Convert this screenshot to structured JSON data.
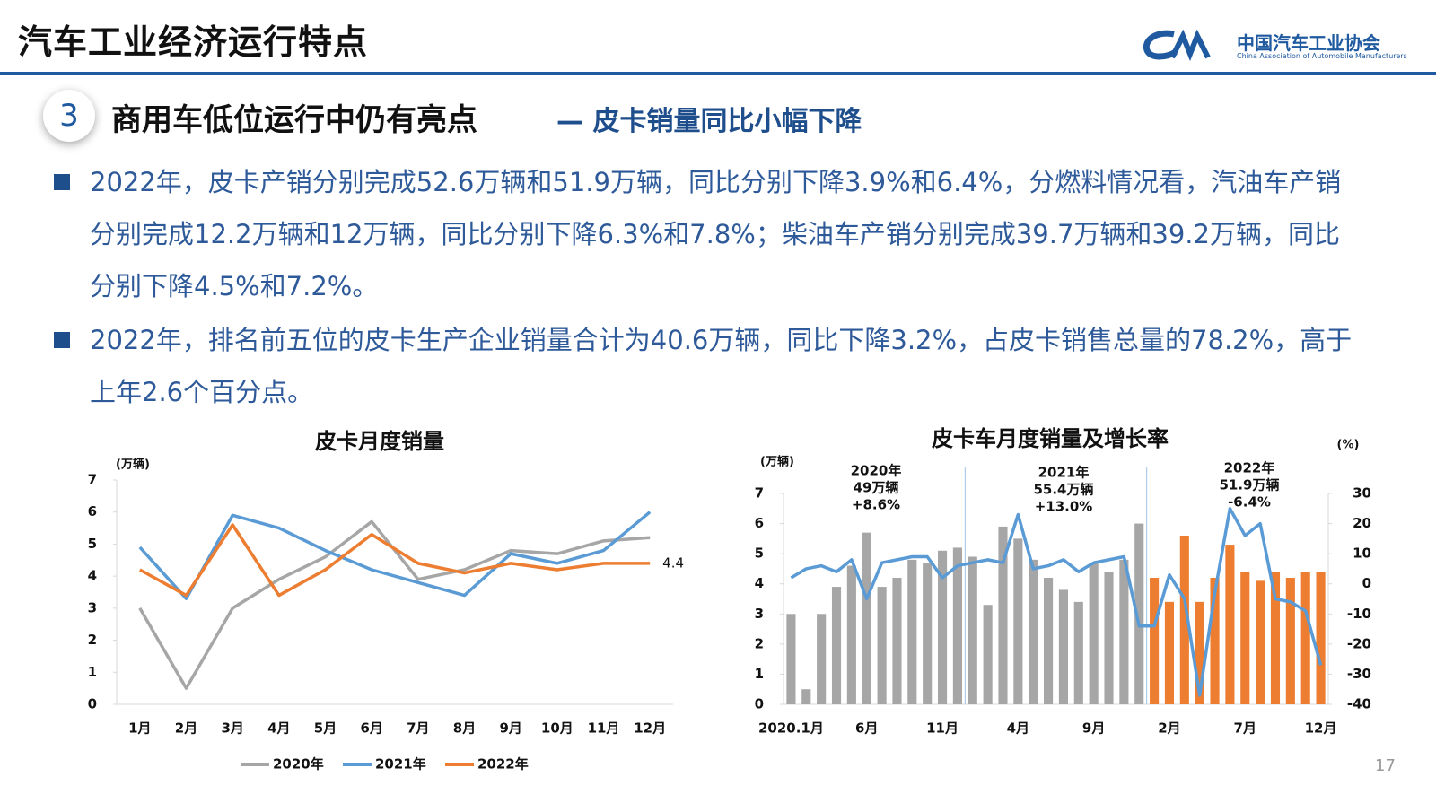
{
  "header": {
    "title": "汽车工业经济运行特点",
    "logo_cn": "中国汽车工业协会",
    "logo_en": "China Association of Automobile Manufacturers"
  },
  "section": {
    "number": "3",
    "heading": "商用车低位运行中仍有亮点",
    "subheading": "— 皮卡销量同比小幅下降"
  },
  "bullets": [
    "2022年，皮卡产销分别完成52.6万辆和51.9万辆，同比分别下降3.9%和6.4%，分燃料情况看，汽油车产销分别完成12.2万辆和12万辆，同比分别下降6.3%和7.8%；柴油车产销分别完成39.7万辆和39.2万辆，同比分别下降4.5%和7.2%。",
    "2022年，排名前五位的皮卡生产企业销量合计为40.6万辆，同比下降3.2%，占皮卡销售总量的78.2%，高于上年2.6个百分点。"
  ],
  "page_number": "17",
  "chart_data": [
    {
      "type": "line",
      "title": "皮卡月度销量",
      "y_unit": "(万辆)",
      "categories": [
        "1月",
        "2月",
        "3月",
        "4月",
        "5月",
        "6月",
        "7月",
        "8月",
        "9月",
        "10月",
        "11月",
        "12月"
      ],
      "ylim": [
        0,
        7
      ],
      "yticks": [
        0,
        1,
        2,
        3,
        4,
        5,
        6,
        7
      ],
      "legend": "bottom",
      "series": [
        {
          "name": "2020年",
          "color": "#a6a6a6",
          "values": [
            3.0,
            0.5,
            3.0,
            3.9,
            4.6,
            5.7,
            3.9,
            4.2,
            4.8,
            4.7,
            5.1,
            5.2
          ]
        },
        {
          "name": "2021年",
          "color": "#5b9bd5",
          "values": [
            4.9,
            3.3,
            5.9,
            5.5,
            4.8,
            4.2,
            3.8,
            3.4,
            4.7,
            4.4,
            4.8,
            6.0
          ]
        },
        {
          "name": "2022年",
          "color": "#ed7d31",
          "values": [
            4.2,
            3.4,
            5.6,
            3.4,
            4.2,
            5.3,
            4.4,
            4.1,
            4.4,
            4.2,
            4.4,
            4.4
          ]
        }
      ],
      "annotations": [
        "4.4"
      ]
    },
    {
      "type": "combo",
      "title": "皮卡车月度销量及增长率",
      "y_unit": "(万辆)",
      "y2_unit": "(%)",
      "categories": [
        "2020.1月",
        null,
        null,
        null,
        null,
        "6月",
        null,
        null,
        null,
        null,
        "11月",
        null,
        null,
        null,
        null,
        "4月",
        null,
        null,
        null,
        null,
        "9月",
        null,
        null,
        null,
        null,
        "2月",
        null,
        null,
        null,
        null,
        "7月",
        null,
        null,
        null,
        null,
        "12月"
      ],
      "ylim": [
        0,
        7
      ],
      "yticks": [
        0,
        1,
        2,
        3,
        4,
        5,
        6,
        7
      ],
      "y2lim": [
        -40,
        30
      ],
      "y2ticks": [
        -40,
        -30,
        -20,
        -10,
        0,
        10,
        20,
        30
      ],
      "series": [
        {
          "kind": "bar",
          "color": "#a6a6a6",
          "values": [
            3.0,
            0.5,
            3.0,
            3.9,
            4.6,
            5.7,
            3.9,
            4.2,
            4.8,
            4.7,
            5.1,
            5.2,
            4.9,
            3.3,
            5.9,
            5.5,
            4.8,
            4.2,
            3.8,
            3.4,
            4.7,
            4.4,
            4.8,
            6.0,
            null,
            null,
            null,
            null,
            null,
            null,
            null,
            null,
            null,
            null,
            null,
            null
          ]
        },
        {
          "kind": "bar",
          "color": "#ed7d31",
          "values": [
            null,
            null,
            null,
            null,
            null,
            null,
            null,
            null,
            null,
            null,
            null,
            null,
            null,
            null,
            null,
            null,
            null,
            null,
            null,
            null,
            null,
            null,
            null,
            null,
            4.2,
            3.4,
            5.6,
            3.4,
            4.2,
            5.3,
            4.4,
            4.1,
            4.4,
            4.2,
            4.4,
            4.4
          ]
        },
        {
          "kind": "line",
          "axis": "y2",
          "color": "#5b9bd5",
          "values": [
            2,
            5,
            6,
            4,
            8,
            -5,
            7,
            8,
            9,
            9,
            2,
            6,
            7,
            8,
            7,
            23,
            5,
            6,
            8,
            4,
            7,
            8,
            9,
            -14,
            -14,
            3,
            -5,
            -37,
            -3,
            25,
            16,
            20,
            -5,
            -6,
            -9,
            -27
          ]
        }
      ],
      "annotations": [
        "2020年",
        "49万辆",
        "+8.6%",
        "2021年",
        "55.4万辆",
        "+13.0%",
        "2022年",
        "51.9万辆",
        "-6.4%"
      ]
    }
  ]
}
